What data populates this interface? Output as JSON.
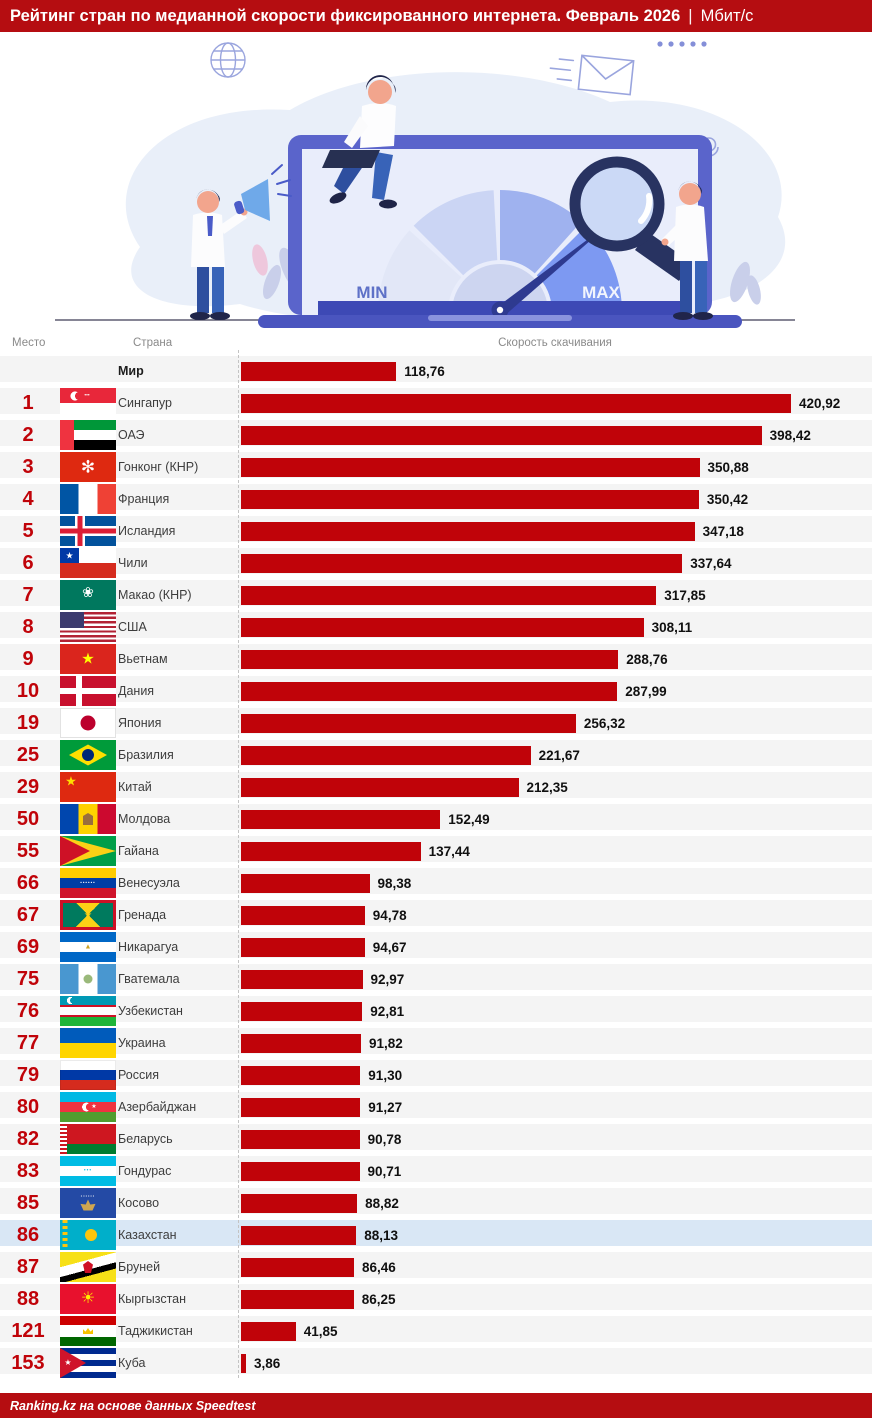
{
  "title": {
    "main": "Рейтинг стран по медианной скорости фиксированного интернета. Февраль 2026",
    "separator": "|",
    "unit": "Мбит/с"
  },
  "illustration": {
    "min_label": "MIN",
    "max_label": "MAX"
  },
  "table": {
    "headers": {
      "rank": "Место",
      "country": "Страна",
      "speed": "Скорость скачивания"
    }
  },
  "chart_data": {
    "type": "bar",
    "orientation": "horizontal",
    "title": "Рейтинг стран по медианной скорости фиксированного интернета. Февраль 2026",
    "unit": "Мбит/с",
    "value_axis_label": "Скорость скачивания",
    "xlim": [
      0,
      430
    ],
    "xmax": 420.92,
    "grid": false,
    "rows": [
      {
        "rank": "",
        "country": "Мир",
        "flag": "world",
        "value": 118.76,
        "display": "118,76",
        "em": true
      },
      {
        "rank": "1",
        "country": "Сингапур",
        "flag": "singapore",
        "value": 420.92,
        "display": "420,92"
      },
      {
        "rank": "2",
        "country": "ОАЭ",
        "flag": "uae",
        "value": 398.42,
        "display": "398,42"
      },
      {
        "rank": "3",
        "country": "Гонконг (КНР)",
        "flag": "hongkong",
        "value": 350.88,
        "display": "350,88"
      },
      {
        "rank": "4",
        "country": "Франция",
        "flag": "france",
        "value": 350.42,
        "display": "350,42"
      },
      {
        "rank": "5",
        "country": "Исландия",
        "flag": "iceland",
        "value": 347.18,
        "display": "347,18"
      },
      {
        "rank": "6",
        "country": "Чили",
        "flag": "chile",
        "value": 337.64,
        "display": "337,64"
      },
      {
        "rank": "7",
        "country": "Макао (КНР)",
        "flag": "macau",
        "value": 317.85,
        "display": "317,85"
      },
      {
        "rank": "8",
        "country": "США",
        "flag": "usa",
        "value": 308.11,
        "display": "308,11"
      },
      {
        "rank": "9",
        "country": "Вьетнам",
        "flag": "vietnam",
        "value": 288.76,
        "display": "288,76"
      },
      {
        "rank": "10",
        "country": "Дания",
        "flag": "denmark",
        "value": 287.99,
        "display": "287,99"
      },
      {
        "rank": "19",
        "country": "Япония",
        "flag": "japan",
        "value": 256.32,
        "display": "256,32"
      },
      {
        "rank": "25",
        "country": "Бразилия",
        "flag": "brazil",
        "value": 221.67,
        "display": "221,67"
      },
      {
        "rank": "29",
        "country": "Китай",
        "flag": "china",
        "value": 212.35,
        "display": "212,35"
      },
      {
        "rank": "50",
        "country": "Молдова",
        "flag": "moldova",
        "value": 152.49,
        "display": "152,49"
      },
      {
        "rank": "55",
        "country": "Гайана",
        "flag": "guyana",
        "value": 137.44,
        "display": "137,44"
      },
      {
        "rank": "66",
        "country": "Венесуэла",
        "flag": "venezuela",
        "value": 98.38,
        "display": "98,38"
      },
      {
        "rank": "67",
        "country": "Гренада",
        "flag": "grenada",
        "value": 94.78,
        "display": "94,78"
      },
      {
        "rank": "69",
        "country": "Никарагуа",
        "flag": "nicaragua",
        "value": 94.67,
        "display": "94,67"
      },
      {
        "rank": "75",
        "country": "Гватемала",
        "flag": "guatemala",
        "value": 92.97,
        "display": "92,97"
      },
      {
        "rank": "76",
        "country": "Узбекистан",
        "flag": "uzbekistan",
        "value": 92.81,
        "display": "92,81"
      },
      {
        "rank": "77",
        "country": "Украина",
        "flag": "ukraine",
        "value": 91.82,
        "display": "91,82"
      },
      {
        "rank": "79",
        "country": "Россия",
        "flag": "russia",
        "value": 91.3,
        "display": "91,30"
      },
      {
        "rank": "80",
        "country": "Азербайджан",
        "flag": "azerbaijan",
        "value": 91.27,
        "display": "91,27"
      },
      {
        "rank": "82",
        "country": "Беларусь",
        "flag": "belarus",
        "value": 90.78,
        "display": "90,78"
      },
      {
        "rank": "83",
        "country": "Гондурас",
        "flag": "honduras",
        "value": 90.71,
        "display": "90,71"
      },
      {
        "rank": "85",
        "country": "Косово",
        "flag": "kosovo",
        "value": 88.82,
        "display": "88,82"
      },
      {
        "rank": "86",
        "country": "Казахстан",
        "flag": "kazakhstan",
        "value": 88.13,
        "display": "88,13",
        "highlight": true
      },
      {
        "rank": "87",
        "country": "Бруней",
        "flag": "brunei",
        "value": 86.46,
        "display": "86,46"
      },
      {
        "rank": "88",
        "country": "Кыргызстан",
        "flag": "kyrgyzstan",
        "value": 86.25,
        "display": "86,25"
      },
      {
        "rank": "121",
        "country": "Таджикистан",
        "flag": "tajikistan",
        "value": 41.85,
        "display": "41,85"
      },
      {
        "rank": "153",
        "country": "Куба",
        "flag": "cuba",
        "value": 3.86,
        "display": "3,86"
      }
    ]
  },
  "footer": {
    "text": "Ranking.kz на основе данных Speedtest"
  },
  "colors": {
    "header_red": "#B50D11",
    "bar_red": "#C00309",
    "rank_red": "#C00309",
    "row_gray": "#F4F4F4",
    "highlight_blue": "#D9E7F5"
  }
}
